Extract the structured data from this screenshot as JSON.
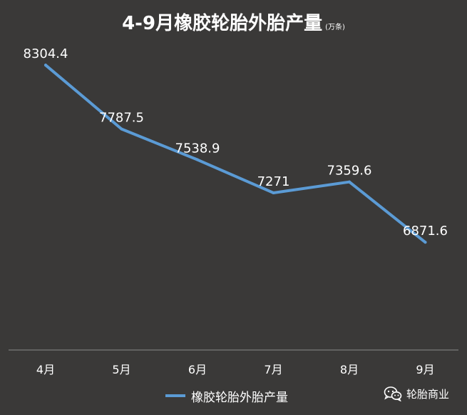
{
  "chart_data": {
    "type": "line",
    "title": "4-9月橡胶轮胎外胎产量",
    "unit": "(万条)",
    "categories": [
      "4月",
      "5月",
      "6月",
      "7月",
      "8月",
      "9月"
    ],
    "series": [
      {
        "name": "橡胶轮胎外胎产量",
        "values": [
          8304.4,
          7787.5,
          7538.9,
          7271,
          7359.6,
          6871.6
        ],
        "labels": [
          "8304.4",
          "7787.5",
          "7538.9",
          "7271",
          "7359.6",
          "6871.6"
        ],
        "color": "#5b9bd5"
      }
    ],
    "ylim": [
      6000,
      8600
    ],
    "grid": false,
    "legend_position": "bottom",
    "background": "#3a3938",
    "text_color": "#ffffff"
  },
  "watermark": {
    "text": "轮胎商业",
    "icon": "wechat-icon"
  }
}
